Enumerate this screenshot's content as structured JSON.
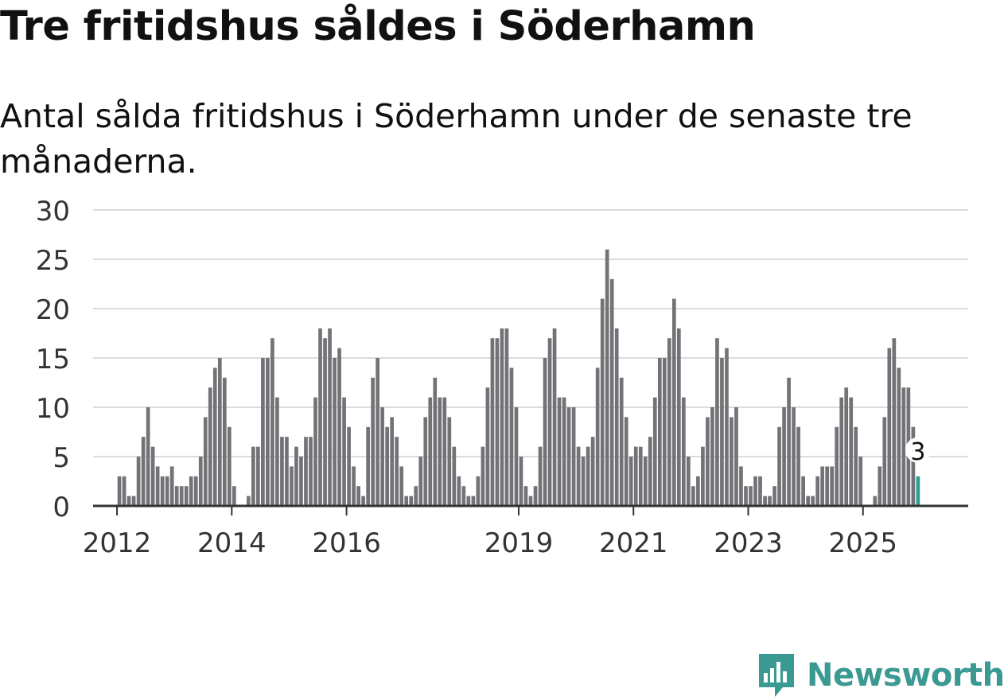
{
  "title": "Tre fritidshus såldes i Söderhamn",
  "subtitle": "Antal sålda fritidshus i Söderhamn under de senaste tre månaderna.",
  "brand": {
    "name": "Newsworthy",
    "icon": "newsworthy-logo-icon",
    "color": "#3a9a92"
  },
  "colors": {
    "bar": "#737277",
    "highlight": "#2f9c92",
    "grid": "#dcdcdc",
    "axis": "#333333",
    "text": "#333333"
  },
  "chart_data": {
    "type": "bar",
    "title": "Tre fritidshus såldes i Söderhamn",
    "xlabel": "",
    "ylabel": "",
    "ylim": [
      0,
      30
    ],
    "yticks": [
      "0",
      "5",
      "10",
      "15",
      "20",
      "25",
      "30"
    ],
    "xticks": [
      {
        "label": "2012",
        "at": 2012
      },
      {
        "label": "2014",
        "at": 2014
      },
      {
        "label": "2016",
        "at": 2016
      },
      {
        "label": "2019",
        "at": 2019
      },
      {
        "label": "2021",
        "at": 2021
      },
      {
        "label": "2023",
        "at": 2023
      },
      {
        "label": "2025",
        "at": 2025
      }
    ],
    "x_start": "2011-08",
    "x_end": "2026-11",
    "first_period": "2012-01",
    "period_unit": "month",
    "values": [
      3,
      3,
      1,
      1,
      5,
      7,
      10,
      6,
      4,
      3,
      3,
      4,
      2,
      2,
      2,
      3,
      3,
      5,
      9,
      12,
      14,
      15,
      13,
      8,
      2,
      0,
      0,
      1,
      6,
      6,
      15,
      15,
      17,
      11,
      7,
      7,
      4,
      6,
      5,
      7,
      7,
      11,
      18,
      17,
      18,
      15,
      16,
      11,
      8,
      4,
      2,
      1,
      8,
      13,
      15,
      10,
      8,
      9,
      7,
      4,
      1,
      1,
      2,
      5,
      9,
      11,
      13,
      11,
      11,
      9,
      6,
      3,
      2,
      1,
      1,
      3,
      6,
      12,
      17,
      17,
      18,
      18,
      14,
      10,
      5,
      2,
      1,
      2,
      6,
      15,
      17,
      18,
      11,
      11,
      10,
      10,
      6,
      5,
      6,
      7,
      14,
      21,
      26,
      23,
      18,
      13,
      9,
      5,
      6,
      6,
      5,
      7,
      11,
      15,
      15,
      17,
      21,
      18,
      11,
      5,
      2,
      3,
      6,
      9,
      10,
      17,
      15,
      16,
      9,
      10,
      4,
      2,
      2,
      3,
      3,
      1,
      1,
      2,
      8,
      10,
      13,
      10,
      8,
      3,
      1,
      1,
      3,
      4,
      4,
      4,
      8,
      11,
      12,
      11,
      8,
      5,
      0,
      0,
      1,
      4,
      9,
      16,
      17,
      14,
      12,
      12,
      8,
      3
    ],
    "highlight": {
      "period": "2025-12",
      "value": 3,
      "label": "3"
    }
  }
}
